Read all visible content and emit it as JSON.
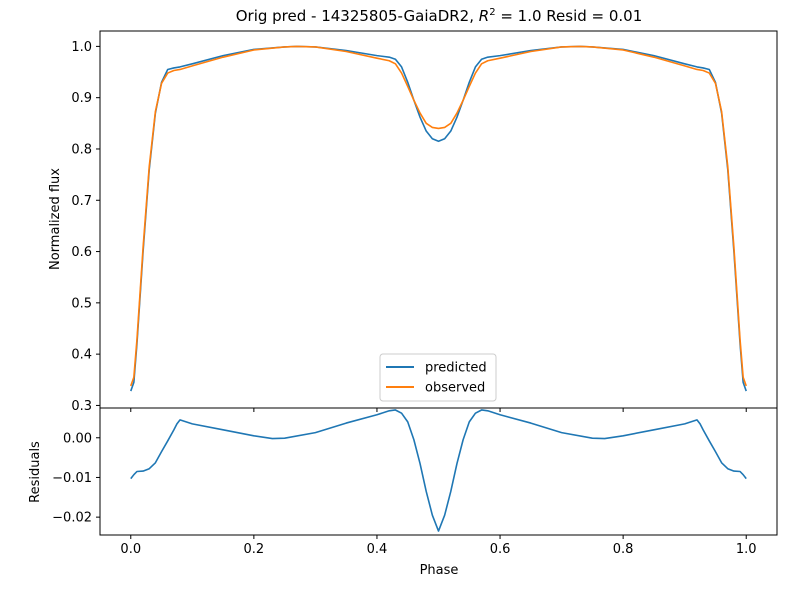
{
  "chart_data": [
    {
      "type": "line",
      "panel": "main",
      "title_prefix": "Orig pred - 14325805-GaiaDR2, ",
      "title_r2": "R",
      "title_r2_sup": "2",
      "title_suffix": " = 1.0 Resid = 0.01",
      "xlabel": "",
      "ylabel": "Normalized flux",
      "xlim": [
        -0.05,
        1.05
      ],
      "ylim": [
        0.295,
        1.03
      ],
      "yticks": [
        "0.3",
        "0.4",
        "0.5",
        "0.6",
        "0.7",
        "0.8",
        "0.9",
        "1.0"
      ],
      "grid": false,
      "legend_position": "lower center",
      "series": [
        {
          "name": "predicted",
          "color": "#1f77b4",
          "x": [
            0,
            0.005,
            0.01,
            0.02,
            0.03,
            0.04,
            0.05,
            0.06,
            0.07,
            0.08,
            0.1,
            0.15,
            0.2,
            0.25,
            0.27,
            0.3,
            0.35,
            0.4,
            0.42,
            0.43,
            0.44,
            0.45,
            0.46,
            0.47,
            0.48,
            0.49,
            0.5,
            0.51,
            0.52,
            0.53,
            0.54,
            0.55,
            0.56,
            0.57,
            0.58,
            0.6,
            0.65,
            0.7,
            0.73,
            0.75,
            0.8,
            0.85,
            0.9,
            0.92,
            0.93,
            0.94,
            0.95,
            0.96,
            0.97,
            0.98,
            0.99,
            0.995,
            1.0
          ],
          "y": [
            0.328,
            0.345,
            0.42,
            0.6,
            0.76,
            0.87,
            0.93,
            0.955,
            0.958,
            0.96,
            0.966,
            0.982,
            0.994,
            0.999,
            1.0,
            0.999,
            0.992,
            0.982,
            0.979,
            0.975,
            0.96,
            0.93,
            0.895,
            0.862,
            0.835,
            0.82,
            0.815,
            0.82,
            0.835,
            0.862,
            0.895,
            0.93,
            0.96,
            0.975,
            0.979,
            0.982,
            0.992,
            0.999,
            1.0,
            0.999,
            0.994,
            0.982,
            0.966,
            0.96,
            0.958,
            0.955,
            0.93,
            0.87,
            0.76,
            0.6,
            0.42,
            0.345,
            0.328
          ]
        },
        {
          "name": "observed",
          "color": "#ff7f0e",
          "x": [
            0,
            0.005,
            0.01,
            0.02,
            0.03,
            0.04,
            0.05,
            0.06,
            0.07,
            0.08,
            0.1,
            0.15,
            0.2,
            0.25,
            0.27,
            0.3,
            0.35,
            0.4,
            0.42,
            0.43,
            0.44,
            0.45,
            0.46,
            0.47,
            0.48,
            0.49,
            0.5,
            0.51,
            0.52,
            0.53,
            0.54,
            0.55,
            0.56,
            0.57,
            0.58,
            0.6,
            0.65,
            0.7,
            0.73,
            0.75,
            0.8,
            0.85,
            0.9,
            0.92,
            0.93,
            0.94,
            0.95,
            0.96,
            0.97,
            0.98,
            0.99,
            0.995,
            1.0
          ],
          "y": [
            0.338,
            0.355,
            0.428,
            0.608,
            0.766,
            0.873,
            0.928,
            0.948,
            0.953,
            0.955,
            0.962,
            0.979,
            0.993,
            0.999,
            1.0,
            0.999,
            0.99,
            0.977,
            0.972,
            0.966,
            0.948,
            0.922,
            0.895,
            0.87,
            0.85,
            0.842,
            0.84,
            0.842,
            0.85,
            0.87,
            0.895,
            0.922,
            0.948,
            0.966,
            0.972,
            0.977,
            0.99,
            0.999,
            1.0,
            0.999,
            0.993,
            0.979,
            0.962,
            0.955,
            0.953,
            0.948,
            0.928,
            0.873,
            0.766,
            0.608,
            0.428,
            0.355,
            0.338
          ]
        }
      ]
    },
    {
      "type": "line",
      "panel": "residuals",
      "xlabel": "Phase",
      "ylabel": "Residuals",
      "xlim": [
        -0.05,
        1.05
      ],
      "ylim": [
        -0.0245,
        0.0075
      ],
      "xticks": [
        "0.0",
        "0.2",
        "0.4",
        "0.6",
        "0.8",
        "1.0"
      ],
      "yticks": [
        "−0.02",
        "−0.01",
        "0.00"
      ],
      "grid": false,
      "series": [
        {
          "color": "#1f77b4",
          "x": [
            0,
            0.005,
            0.01,
            0.02,
            0.03,
            0.04,
            0.05,
            0.06,
            0.07,
            0.075,
            0.08,
            0.1,
            0.15,
            0.2,
            0.23,
            0.25,
            0.3,
            0.35,
            0.4,
            0.42,
            0.43,
            0.44,
            0.45,
            0.46,
            0.47,
            0.48,
            0.49,
            0.5,
            0.51,
            0.52,
            0.53,
            0.54,
            0.55,
            0.56,
            0.57,
            0.58,
            0.6,
            0.65,
            0.7,
            0.75,
            0.77,
            0.8,
            0.85,
            0.9,
            0.92,
            0.925,
            0.93,
            0.94,
            0.95,
            0.96,
            0.97,
            0.98,
            0.99,
            0.995,
            1.0
          ],
          "y": [
            -0.0103,
            -0.0093,
            -0.0085,
            -0.0084,
            -0.0078,
            -0.0063,
            -0.0035,
            -0.0008,
            0.002,
            0.0035,
            0.0045,
            0.0035,
            0.002,
            0.0005,
            -0.0002,
            -0.0001,
            0.0013,
            0.0037,
            0.0058,
            0.0068,
            0.007,
            0.0062,
            0.004,
            -0.0005,
            -0.0065,
            -0.0135,
            -0.0195,
            -0.0235,
            -0.0195,
            -0.0135,
            -0.0065,
            -0.0005,
            0.004,
            0.0062,
            0.007,
            0.0068,
            0.0058,
            0.0037,
            0.0013,
            -0.0001,
            -0.0002,
            0.0005,
            0.002,
            0.0035,
            0.0045,
            0.0035,
            0.002,
            -0.0008,
            -0.0035,
            -0.0063,
            -0.0078,
            -0.0084,
            -0.0085,
            -0.0093,
            -0.0103
          ]
        }
      ]
    }
  ]
}
